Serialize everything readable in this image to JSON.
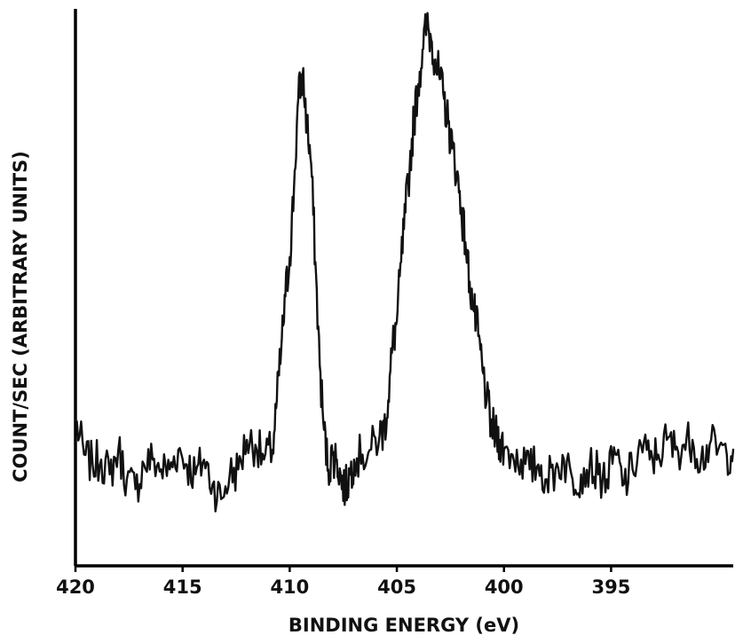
{
  "chart_data": {
    "type": "line",
    "title": "",
    "xlabel": "BINDING ENERGY (eV)",
    "ylabel": "COUNT/SEC (ARBITRARY UNITS)",
    "xlim": [
      420,
      389.3
    ],
    "x_reversed": true,
    "ylim": [
      0,
      100
    ],
    "y_ticks": "none",
    "grid": false,
    "legend": "none",
    "x_tick_labels": [
      "420",
      "415",
      "410",
      "405",
      "400",
      "395"
    ],
    "x_tick_values": [
      420,
      415,
      410,
      405,
      400,
      395
    ],
    "series": [
      {
        "color": "#111111",
        "x": [
          420.0,
          419.6,
          419.2,
          418.8,
          418.4,
          418.0,
          417.6,
          417.2,
          416.8,
          416.4,
          416.0,
          415.6,
          415.2,
          414.8,
          414.4,
          414.0,
          413.6,
          413.2,
          412.8,
          412.4,
          412.0,
          411.6,
          411.2,
          410.8,
          410.6,
          410.4,
          410.2,
          410.0,
          409.8,
          409.6,
          409.4,
          409.2,
          409.0,
          408.8,
          408.6,
          408.4,
          408.2,
          408.0,
          407.8,
          407.6,
          407.4,
          407.2,
          407.0,
          406.6,
          406.2,
          405.8,
          405.6,
          405.4,
          405.2,
          405.0,
          404.8,
          404.6,
          404.4,
          404.2,
          404.0,
          403.8,
          403.6,
          403.4,
          403.2,
          403.0,
          402.8,
          402.6,
          402.4,
          402.2,
          402.0,
          401.8,
          401.6,
          401.4,
          401.2,
          401.0,
          400.8,
          400.6,
          400.4,
          400.2,
          400.0,
          399.6,
          399.2,
          398.8,
          398.4,
          398.0,
          397.6,
          397.2,
          396.8,
          396.4,
          396.0,
          395.6,
          395.2,
          394.8,
          394.4,
          394.0,
          393.6,
          393.2,
          392.8,
          392.4,
          392.0,
          391.6,
          391.2,
          390.8,
          390.4,
          390.0,
          389.6,
          389.3
        ],
        "y": [
          20,
          13,
          11,
          12,
          9,
          14,
          8,
          6,
          11,
          12,
          10,
          10,
          14,
          11,
          9,
          12,
          7,
          4,
          9,
          10,
          16,
          15,
          12,
          14,
          24,
          34,
          45,
          53,
          67,
          85,
          90,
          80,
          72,
          52,
          31,
          18,
          10,
          13,
          12,
          8,
          6,
          9,
          12,
          13,
          14,
          17,
          18,
          24,
          35,
          40,
          52,
          62,
          71,
          81,
          88,
          95,
          100,
          97,
          93,
          89,
          85,
          80,
          75,
          70,
          63,
          56,
          48,
          42,
          37,
          30,
          24,
          19,
          17,
          16,
          14,
          13,
          12,
          10,
          11,
          8,
          10,
          12,
          8,
          9,
          11,
          9,
          8,
          13,
          7,
          10,
          15,
          12,
          13,
          16,
          14,
          15,
          16,
          12,
          15,
          14,
          13,
          14
        ]
      }
    ]
  }
}
